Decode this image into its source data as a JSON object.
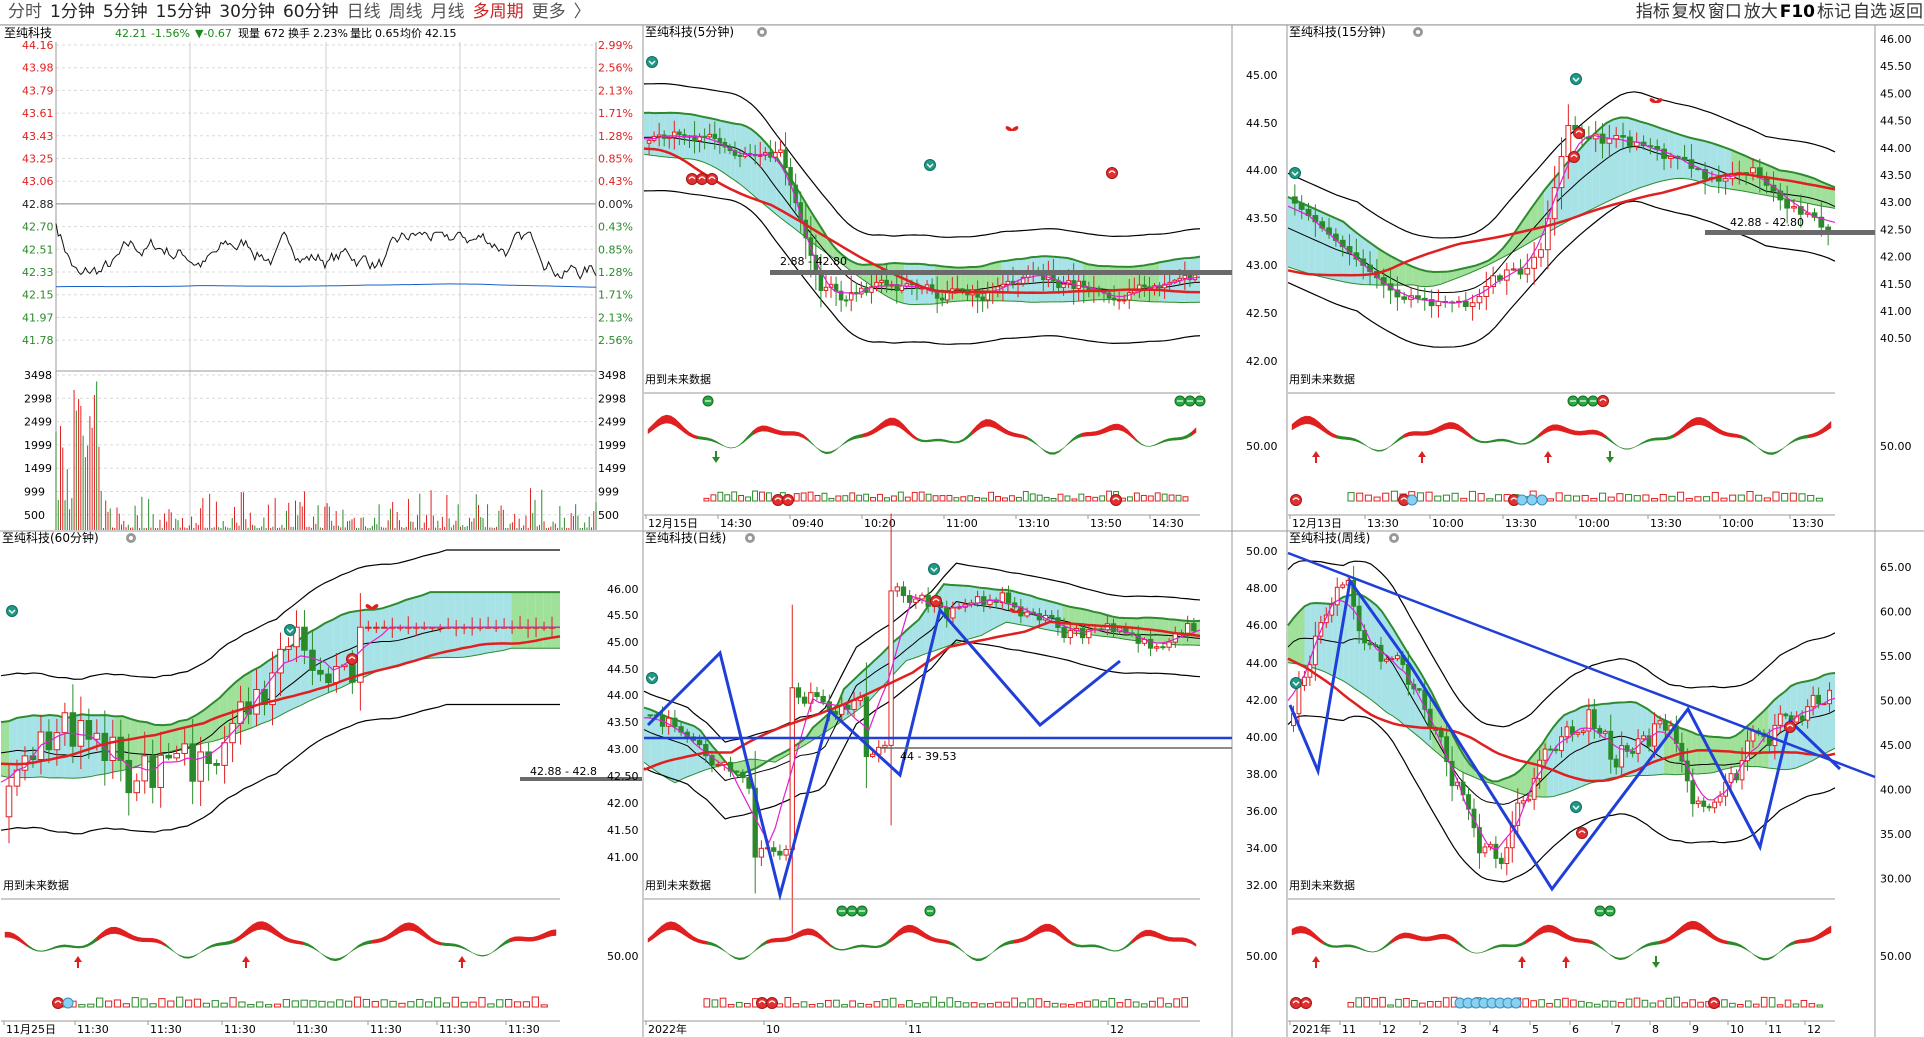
{
  "toolbar": {
    "tabs": [
      {
        "label": "分时",
        "state": "dim"
      },
      {
        "label": "1分钟",
        "state": "normal"
      },
      {
        "label": "5分钟",
        "state": "normal"
      },
      {
        "label": "15分钟",
        "state": "normal"
      },
      {
        "label": "30分钟",
        "state": "normal"
      },
      {
        "label": "60分钟",
        "state": "normal"
      },
      {
        "label": "日线",
        "state": "dim"
      },
      {
        "label": "周线",
        "state": "dim"
      },
      {
        "label": "月线",
        "state": "dim"
      },
      {
        "label": "多周期",
        "state": "active"
      },
      {
        "label": "更多",
        "state": "dim"
      }
    ],
    "more_chevron": "〉",
    "tools": [
      {
        "label": "指标",
        "strong": false
      },
      {
        "label": "复权",
        "strong": false
      },
      {
        "label": "窗口",
        "strong": false
      },
      {
        "label": "放大",
        "strong": false
      },
      {
        "label": "F10",
        "strong": true
      },
      {
        "label": "标记",
        "strong": false
      },
      {
        "label": "自选",
        "strong": false
      },
      {
        "label": "返回",
        "strong": false
      }
    ]
  },
  "panels": {
    "intraday": {
      "title": "至纯科技",
      "price": "42.21",
      "change_pct": "-1.56%",
      "change": "▼-0.67",
      "volume_label": "现量",
      "volume": "672",
      "turnover_label": "换手",
      "turnover": "2.23%",
      "ratio_label": "量比",
      "ratio": "0.65",
      "avg_label": "均价",
      "avg": "42.15",
      "price_ticks": [
        "44.16",
        "43.98",
        "43.79",
        "43.61",
        "43.43",
        "43.25",
        "43.06",
        "42.88",
        "42.70",
        "42.51",
        "42.33",
        "42.15",
        "41.97",
        "41.78"
      ],
      "pct_ticks": [
        "2.99%",
        "2.56%",
        "2.13%",
        "1.71%",
        "1.28%",
        "0.85%",
        "0.43%",
        "0.00%",
        "0.43%",
        "0.85%",
        "1.28%",
        "1.71%",
        "2.13%",
        "2.56%"
      ],
      "vol_ticks": [
        "3498",
        "2998",
        "2499",
        "1999",
        "1499",
        "999",
        "500"
      ],
      "vol_ticks_right": [
        "3498",
        "2998",
        "2499",
        "1999",
        "1499",
        "999",
        "500"
      ]
    },
    "m5": {
      "title": "至纯科技(5分钟)",
      "level_label": "42.88 - 42.80",
      "level_display": "2.88 - 42.80",
      "note": "用到未来数据",
      "time_labels": [
        "12月15日",
        "14:30",
        "09:40",
        "10:20",
        "11:00",
        "13:10",
        "13:50",
        "14:30"
      ]
    },
    "m15": {
      "title": "至纯科技(15分钟)",
      "level_label": "42.88 - 42.80",
      "note": "用到未来数据",
      "left_ticks": [
        "45.00",
        "44.50",
        "44.00",
        "43.50",
        "43.00",
        "42.50",
        "42.00"
      ],
      "right_ticks": [
        "46.00",
        "45.50",
        "45.00",
        "44.50",
        "44.00",
        "43.50",
        "43.00",
        "42.50",
        "42.00",
        "41.50",
        "41.00",
        "40.50"
      ],
      "lower_tick": "50.00",
      "lower_tick_right": "50.00",
      "time_labels": [
        "12月13日",
        "13:30",
        "10:00",
        "13:30",
        "10:00",
        "13:30",
        "10:00",
        "13:30"
      ]
    },
    "m60": {
      "title": "至纯科技(60分钟)",
      "level_label": "42.88 - 42.8",
      "note": "用到未来数据",
      "time_labels": [
        "11月25日",
        "11:30",
        "11:30",
        "11:30",
        "11:30",
        "11:30",
        "11:30",
        "11:30"
      ]
    },
    "daily": {
      "title": "至纯科技(日线)",
      "level_label": "44 - 39.53",
      "note": "用到未来数据",
      "price_ticks": [
        "46.00",
        "45.50",
        "45.00",
        "44.50",
        "44.00",
        "43.50",
        "43.00",
        "42.50",
        "42.00",
        "41.50",
        "41.00"
      ],
      "lower_tick": "50.00",
      "time_labels": [
        "2022年",
        "10",
        "11",
        "12"
      ]
    },
    "weekly": {
      "title": "至纯科技(周线)",
      "note": "用到未来数据",
      "left_ticks": [
        "50.00",
        "48.00",
        "46.00",
        "44.00",
        "42.00",
        "40.00",
        "38.00",
        "36.00",
        "34.00",
        "32.00"
      ],
      "right_ticks": [
        "65.00",
        "60.00",
        "55.00",
        "50.00",
        "45.00",
        "40.00",
        "35.00",
        "30.00"
      ],
      "lower_tick": "50.00",
      "lower_tick_right": "50.00",
      "time_labels": [
        "2021年",
        "11",
        "12",
        "2",
        "3",
        "4",
        "5",
        "6",
        "7",
        "8",
        "9",
        "10",
        "11",
        "12"
      ]
    }
  },
  "colors": {
    "up": "#e02020",
    "down": "#2a8a2a",
    "blue": "#1f3fd8",
    "gridline": "#dadada",
    "mid": "#1a60c8",
    "level": "#6a6a6a"
  }
}
